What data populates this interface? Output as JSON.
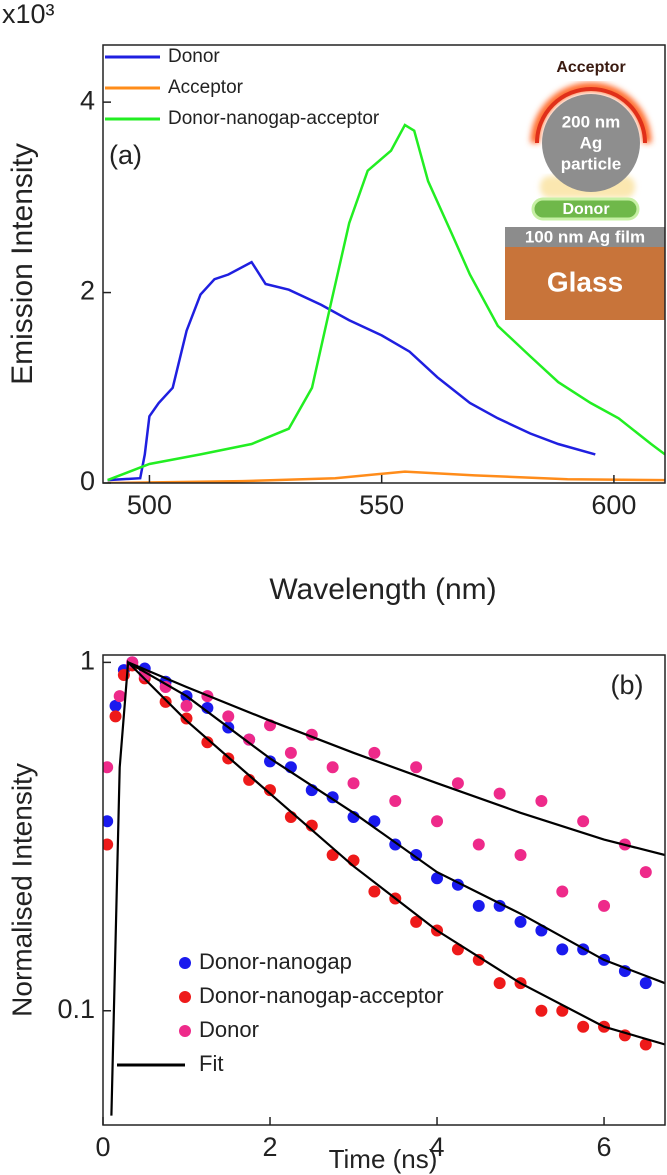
{
  "chart_data": [
    {
      "type": "line",
      "y_multiplier": "x10³",
      "xlabel": "Wavelength (nm)",
      "ylabel": "Emission Intensity",
      "annotation": "(a)",
      "xlim": [
        490,
        611
      ],
      "ylim": [
        0,
        4.6
      ],
      "xticks": [
        500,
        550,
        600
      ],
      "yticks": [
        0,
        2,
        4
      ],
      "legend": "upper left",
      "series": [
        {
          "name": "Donor",
          "color": "#1f1fe0",
          "x": [
            491,
            498,
            499,
            500,
            502,
            505,
            508,
            511,
            514,
            517,
            522,
            525,
            530,
            537,
            543,
            550,
            556,
            562,
            569,
            575,
            582,
            588,
            596
          ],
          "values": [
            0.03,
            0.05,
            0.3,
            0.7,
            0.84,
            1.0,
            1.6,
            1.98,
            2.14,
            2.19,
            2.32,
            2.09,
            2.03,
            1.87,
            1.71,
            1.55,
            1.38,
            1.11,
            0.84,
            0.68,
            0.52,
            0.41,
            0.3
          ]
        },
        {
          "name": "Acceptor",
          "color": "#ff8c1a",
          "x": [
            491,
            520,
            540,
            555,
            570,
            590,
            611
          ],
          "values": [
            0,
            0.02,
            0.05,
            0.12,
            0.08,
            0.04,
            0.03
          ]
        },
        {
          "name": "Donor-nanogap-acceptor",
          "color": "#22ee22",
          "x": [
            491,
            500,
            511,
            522,
            530,
            535,
            539,
            543,
            547,
            552,
            555,
            557,
            560,
            565,
            569,
            575,
            582,
            588,
            595,
            601,
            608,
            611
          ],
          "values": [
            0.03,
            0.2,
            0.3,
            0.41,
            0.57,
            1.0,
            1.87,
            2.73,
            3.28,
            3.49,
            3.76,
            3.7,
            3.17,
            2.63,
            2.19,
            1.65,
            1.33,
            1.06,
            0.84,
            0.68,
            0.41,
            0.3
          ]
        }
      ],
      "inset": {
        "acceptor": "Acceptor",
        "particle": [
          "200 nm",
          "Ag",
          "particle"
        ],
        "donor": "Donor",
        "film": "100 nm Ag film",
        "glass": "Glass"
      }
    },
    {
      "type": "scatter",
      "xlabel": "Time (ns)",
      "ylabel": "Normalised Intensity",
      "annotation": "(b)",
      "log_y": true,
      "xlim": [
        0,
        6.73
      ],
      "ylim": [
        0.047,
        1.05
      ],
      "xticks": [
        0,
        2,
        4,
        6
      ],
      "yticks": [
        0.1,
        1
      ],
      "legend": "lower left",
      "series": [
        {
          "name": "Donor-nanogap",
          "color": "#1a1aee",
          "style": "points",
          "x": [
            0.05,
            0.15,
            0.25,
            0.35,
            0.5,
            0.75,
            1.0,
            1.25,
            1.5,
            1.75,
            2.0,
            2.25,
            2.5,
            2.75,
            3.0,
            3.25,
            3.5,
            3.75,
            4.0,
            4.25,
            4.5,
            4.75,
            5.0,
            5.25,
            5.5,
            5.75,
            6.0,
            6.25,
            6.5
          ],
          "values": [
            0.35,
            0.75,
            0.95,
            1.0,
            0.96,
            0.88,
            0.8,
            0.74,
            0.65,
            0.6,
            0.52,
            0.5,
            0.43,
            0.41,
            0.36,
            0.35,
            0.3,
            0.28,
            0.24,
            0.23,
            0.2,
            0.2,
            0.18,
            0.17,
            0.15,
            0.15,
            0.14,
            0.13,
            0.12
          ]
        },
        {
          "name": "Donor-nanogap-acceptor",
          "color": "#ee1a1a",
          "style": "points",
          "x": [
            0.05,
            0.15,
            0.25,
            0.35,
            0.5,
            0.75,
            1.0,
            1.25,
            1.5,
            1.75,
            2.0,
            2.25,
            2.5,
            2.75,
            3.0,
            3.25,
            3.5,
            3.75,
            4.0,
            4.25,
            4.5,
            4.75,
            5.0,
            5.25,
            5.5,
            5.75,
            6.0,
            6.25,
            6.5
          ],
          "values": [
            0.3,
            0.7,
            0.92,
            0.98,
            0.9,
            0.77,
            0.69,
            0.59,
            0.53,
            0.46,
            0.43,
            0.36,
            0.34,
            0.28,
            0.27,
            0.22,
            0.21,
            0.18,
            0.17,
            0.15,
            0.14,
            0.12,
            0.12,
            0.1,
            0.1,
            0.09,
            0.09,
            0.085,
            0.08
          ]
        },
        {
          "name": "Donor",
          "color": "#ee2a8a",
          "style": "points",
          "x": [
            0.05,
            0.2,
            0.35,
            0.5,
            0.75,
            1.0,
            1.25,
            1.5,
            1.75,
            2.0,
            2.25,
            2.5,
            2.75,
            3.0,
            3.25,
            3.5,
            3.75,
            4.0,
            4.25,
            4.5,
            4.75,
            5.0,
            5.25,
            5.5,
            5.75,
            6.0,
            6.25,
            6.5
          ],
          "values": [
            0.5,
            0.8,
            1.0,
            0.92,
            0.85,
            0.75,
            0.8,
            0.7,
            0.6,
            0.66,
            0.55,
            0.62,
            0.5,
            0.45,
            0.55,
            0.4,
            0.5,
            0.35,
            0.45,
            0.3,
            0.42,
            0.28,
            0.4,
            0.22,
            0.35,
            0.2,
            0.3,
            0.25
          ]
        },
        {
          "name": "Fit",
          "color": "#000000",
          "style": "line",
          "x": [
            0.1,
            0.2,
            0.3,
            1,
            2,
            3,
            4,
            5,
            6,
            6.73,
            null,
            0.1,
            0.2,
            0.3,
            1,
            2,
            3,
            4,
            5,
            6,
            6.73,
            null,
            0.1,
            0.2,
            0.3,
            1,
            2,
            3,
            4,
            5,
            6,
            6.73
          ],
          "values": [
            0.05,
            0.5,
            1.0,
            0.85,
            0.68,
            0.55,
            0.45,
            0.37,
            0.31,
            0.28,
            null,
            0.05,
            0.5,
            1.0,
            0.8,
            0.53,
            0.37,
            0.25,
            0.19,
            0.14,
            0.12,
            null,
            0.05,
            0.5,
            1.0,
            0.68,
            0.42,
            0.26,
            0.17,
            0.12,
            0.09,
            0.08
          ]
        }
      ]
    }
  ]
}
